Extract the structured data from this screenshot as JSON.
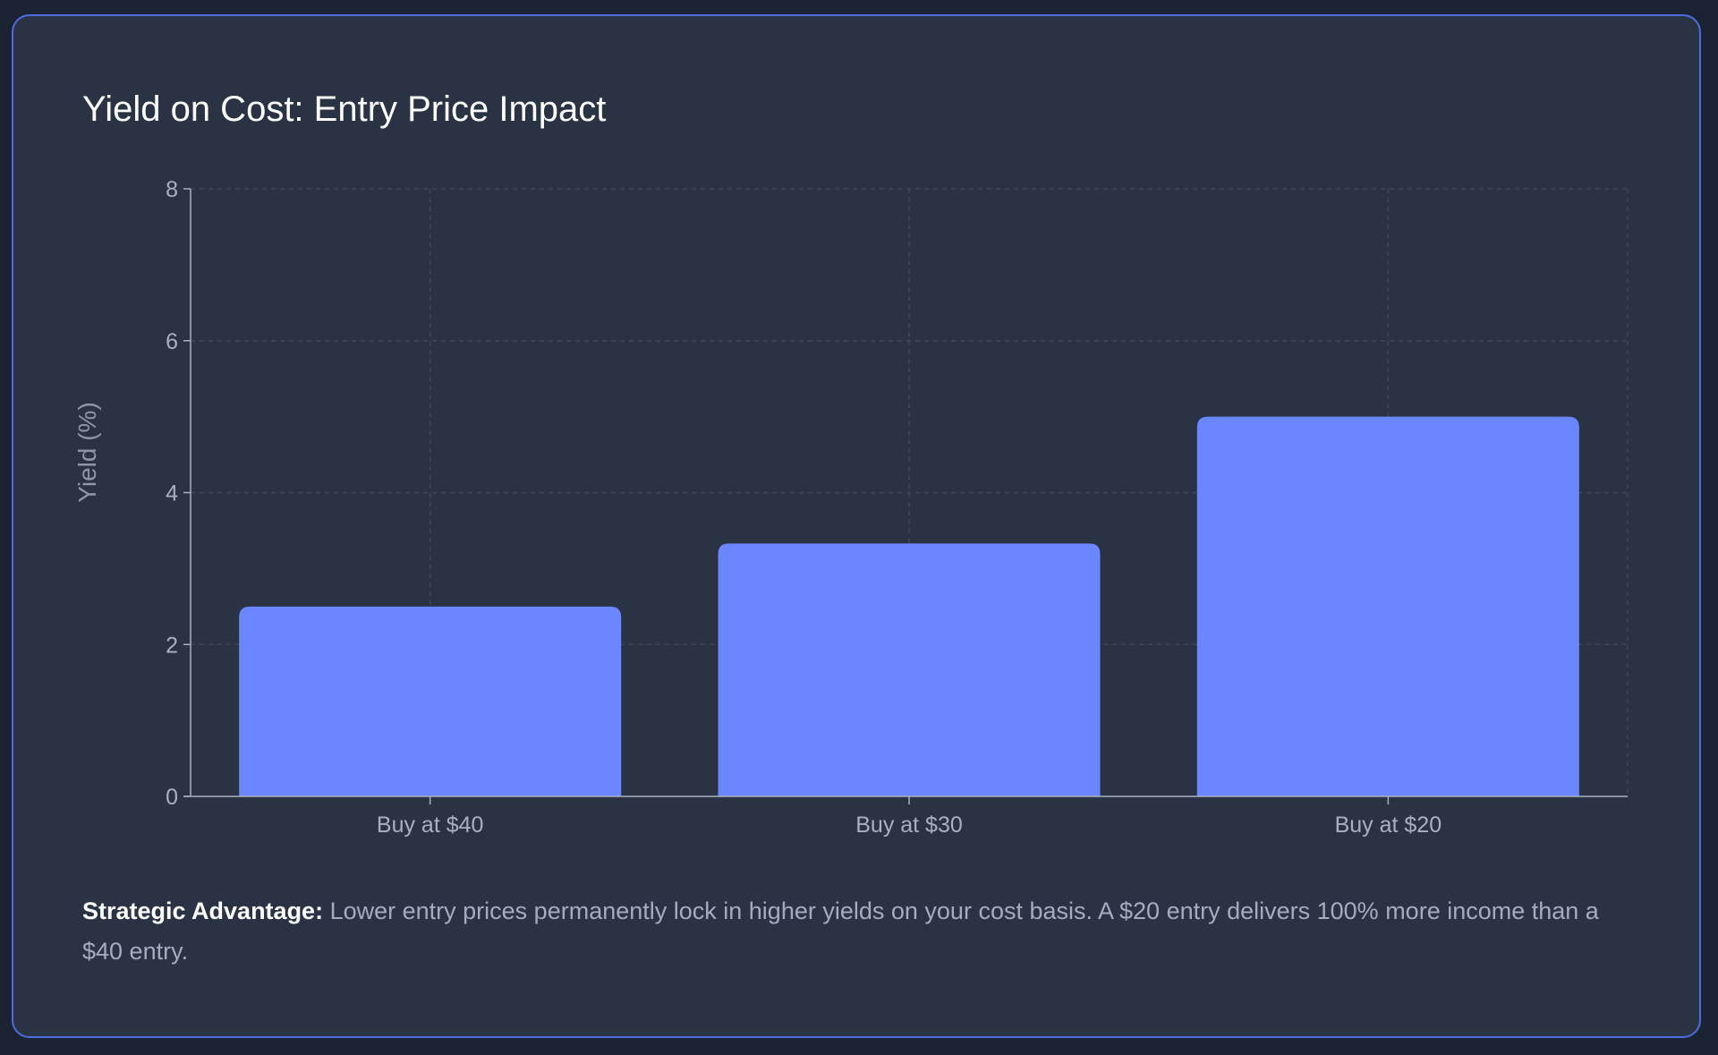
{
  "chart_data": {
    "type": "bar",
    "title": "Yield on Cost: Entry Price Impact",
    "xlabel": "",
    "ylabel": "Yield (%)",
    "categories": [
      "Buy at $40",
      "Buy at $30",
      "Buy at $20"
    ],
    "values": [
      2.5,
      3.33,
      5.0
    ],
    "ylim": [
      0,
      8
    ],
    "yticks": [
      0,
      2,
      4,
      6,
      8
    ],
    "grid": true,
    "legend": "none",
    "colors": {
      "bar": "#6b87ff",
      "axis": "#a9b1c0",
      "grid": "#3d4658",
      "tick_label": "#a9b1c0"
    }
  },
  "note": {
    "label": "Strategic Advantage:",
    "text": "Lower entry prices permanently lock in higher yields on your cost basis. A $20 entry delivers 100% more income than a $40 entry."
  },
  "colors": {
    "background": "#1b2333",
    "card": "#2a3344",
    "card_border": "#4f6be0"
  }
}
